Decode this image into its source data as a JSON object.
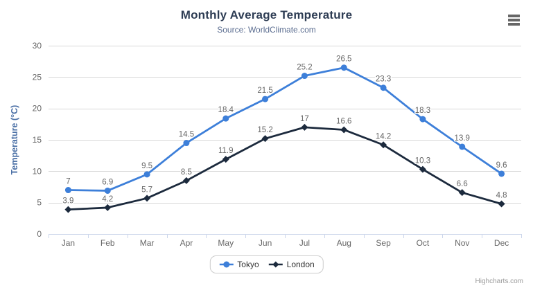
{
  "chart_data": {
    "type": "line",
    "title": "Monthly Average Temperature",
    "subtitle": "Source: WorldClimate.com",
    "xlabel": "",
    "ylabel": "Temperature (°C)",
    "categories": [
      "Jan",
      "Feb",
      "Mar",
      "Apr",
      "May",
      "Jun",
      "Jul",
      "Aug",
      "Sep",
      "Oct",
      "Nov",
      "Dec"
    ],
    "series": [
      {
        "name": "Tokyo",
        "color": "#3d7fd9",
        "marker": "circle",
        "values": [
          7,
          6.9,
          9.5,
          14.5,
          18.4,
          21.5,
          25.2,
          26.5,
          23.3,
          18.3,
          13.9,
          9.6
        ]
      },
      {
        "name": "London",
        "color": "#1c2a3d",
        "marker": "diamond",
        "values": [
          3.9,
          4.2,
          5.7,
          8.5,
          11.9,
          15.2,
          17,
          16.6,
          14.2,
          10.3,
          6.6,
          4.8
        ]
      }
    ],
    "ylim": [
      0,
      30
    ],
    "yticks": [
      0,
      5,
      10,
      15,
      20,
      25,
      30
    ],
    "grid": true,
    "data_labels": true,
    "legend_position": "bottom-center"
  },
  "credits": {
    "text": "Highcharts.com"
  },
  "icons": {
    "context_menu": "hamburger-menu-icon"
  },
  "theme": {
    "background": "#ffffff",
    "title_color": "#2e3d54",
    "subtitle_color": "#5c6e91",
    "axis_title_color": "#4a6fa5",
    "axis_label_color": "#666666",
    "data_label_color": "#666666",
    "data_label_halo": "#ffffff",
    "gridline_color": "#d8d8d8",
    "axis_line_color": "#ccd6eb",
    "legend_border_color": "#cccccc",
    "legend_text_color": "#333333",
    "credits_color": "#999999",
    "menu_icon_color": "#666666"
  }
}
